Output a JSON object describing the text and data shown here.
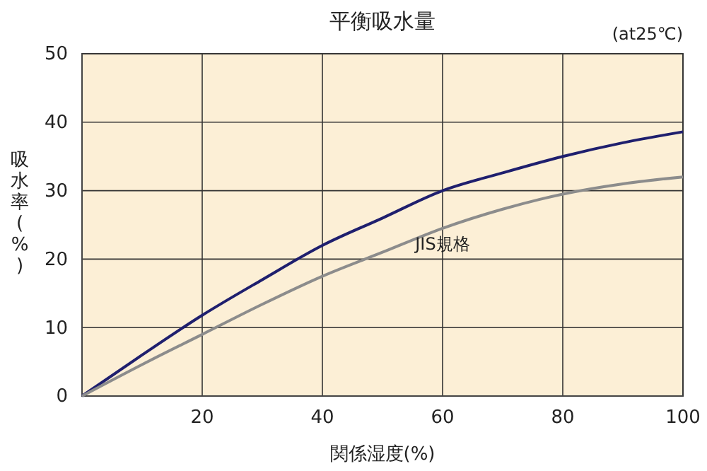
{
  "chart_data": {
    "type": "line",
    "title": "平衡吸水量",
    "subtitle": "(at25℃)",
    "xlabel": "関係湿度(%)",
    "ylabel": "吸水率(%)",
    "x": [
      0,
      10,
      20,
      30,
      40,
      50,
      60,
      70,
      80,
      90,
      100
    ],
    "series": [
      {
        "color": "#1f1f6e",
        "values": [
          0,
          6,
          11.8,
          17,
          22,
          26,
          30,
          32.6,
          35,
          37,
          38.6
        ]
      },
      {
        "name": "JIS規格",
        "color": "#8c8c8c",
        "values": [
          0,
          4.6,
          9,
          13.4,
          17.5,
          21,
          24.5,
          27.3,
          29.5,
          31,
          32
        ]
      }
    ],
    "xlim": [
      0,
      100
    ],
    "xticks": [
      20,
      40,
      60,
      80,
      100
    ],
    "ylim": [
      0,
      50
    ],
    "yticks": [
      0,
      10,
      20,
      30,
      40,
      50
    ],
    "grid": true,
    "marker": "none",
    "line_style": "solid"
  }
}
